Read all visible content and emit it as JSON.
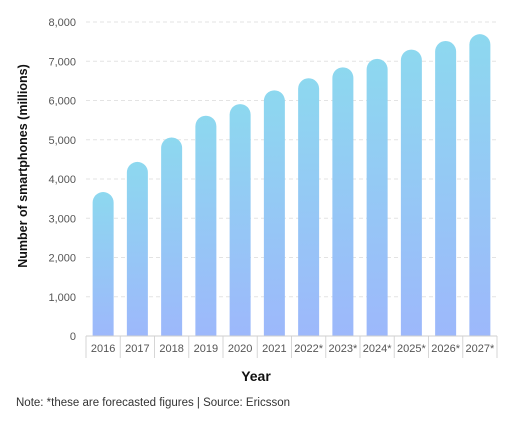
{
  "chart_data": {
    "type": "bar",
    "categories": [
      "2016",
      "2017",
      "2018",
      "2019",
      "2020",
      "2021",
      "2022*",
      "2023*",
      "2024*",
      "2025*",
      "2026*",
      "2027*"
    ],
    "values": [
      3668,
      4435,
      5059,
      5612,
      5908,
      6259,
      6567,
      6845,
      7061,
      7297,
      7516,
      7690
    ],
    "xlabel": "Year",
    "ylabel": "Number of smartphones (millions)",
    "ylim": [
      0,
      8000
    ],
    "yticks": [
      "0",
      "1,000",
      "2,000",
      "3,000",
      "4,000",
      "5,000",
      "6,000",
      "7,000",
      "8,000"
    ],
    "grid": "horizontal dashed",
    "colors": {
      "bar_top": "#8dd8ef",
      "bar_bottom": "#9db8fb",
      "grid": "#e3e3e3"
    }
  },
  "note": "Note: *these are forecasted figures | Source: Ericsson"
}
